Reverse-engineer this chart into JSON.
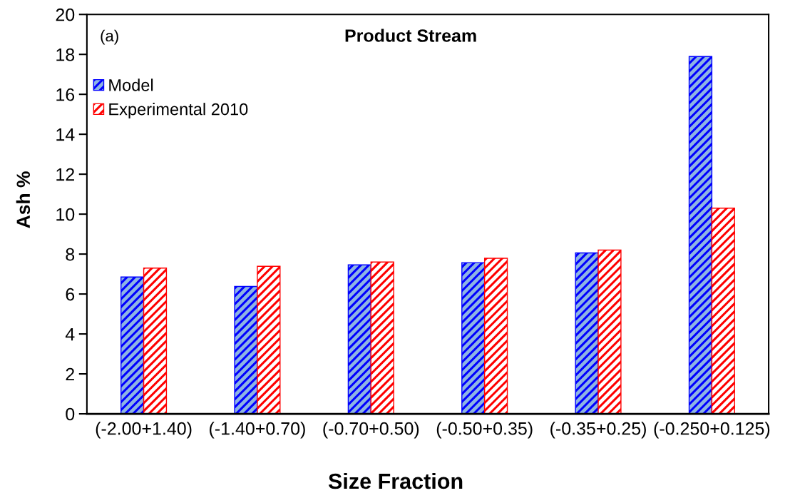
{
  "chart_data": {
    "type": "bar",
    "title": "Product Stream",
    "xlabel": "Size Fraction",
    "ylabel": "Ash %",
    "annotations": [
      "(a)"
    ],
    "categories": [
      "(-2.00+1.40)",
      "(-1.40+0.70)",
      "(-0.70+0.50)",
      "(-0.50+0.35)",
      "(-0.35+0.25)",
      "(-0.250+0.125)"
    ],
    "series": [
      {
        "name": "Model",
        "color": "#0000ff",
        "values": [
          6.85,
          6.38,
          7.46,
          7.57,
          8.06,
          17.89
        ]
      },
      {
        "name": "Experimental 2010",
        "color": "#ff0000",
        "values": [
          7.3,
          7.39,
          7.6,
          7.79,
          8.2,
          10.3
        ]
      }
    ],
    "ylim": [
      0,
      20
    ],
    "yticks": [
      0,
      2,
      4,
      6,
      8,
      10,
      12,
      14,
      16,
      18,
      20
    ],
    "legend": "top left"
  }
}
